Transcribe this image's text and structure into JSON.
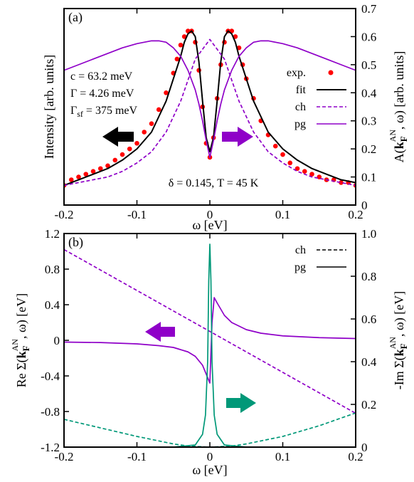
{
  "chart_data": [
    {
      "panel": "(a)",
      "type": "line",
      "xlabel": "ω [eV]",
      "ylabel_left": "Intensity [arb. units]",
      "ylabel_right": "A(k_F^AN, ω) [arb. units]",
      "xlim": [
        -0.2,
        0.2
      ],
      "ylim_right": [
        0,
        0.7
      ],
      "x_ticks": [
        "-0.2",
        "-0.1",
        "0",
        "0.1",
        "0.2"
      ],
      "y_ticks_right": [
        "0",
        "0.1",
        "0.2",
        "0.3",
        "0.4",
        "0.5",
        "0.6",
        "0.7"
      ],
      "grid": false,
      "legend_position": "right",
      "legend": [
        "exp.",
        "fit",
        "ch",
        "pg"
      ],
      "annotations": {
        "c": "c = 63.2 meV",
        "gamma": "Γ = 4.26 meV",
        "gamma_sf": "Γ",
        "gamma_sf_sub": "sf",
        "gamma_sf_value": " = 375 meV",
        "params": "δ = 0.145, T = 45 K"
      },
      "series": [
        {
          "name": "exp.",
          "style": "scatter",
          "color": "#ff0000",
          "x": [
            -0.2,
            -0.19,
            -0.18,
            -0.17,
            -0.16,
            -0.15,
            -0.14,
            -0.13,
            -0.12,
            -0.11,
            -0.1,
            -0.09,
            -0.08,
            -0.07,
            -0.06,
            -0.05,
            -0.045,
            -0.04,
            -0.035,
            -0.03,
            -0.025,
            -0.02,
            -0.015,
            -0.01,
            -0.005,
            0,
            0.005,
            0.01,
            0.015,
            0.02,
            0.025,
            0.03,
            0.035,
            0.04,
            0.045,
            0.05,
            0.06,
            0.07,
            0.08,
            0.09,
            0.1,
            0.11,
            0.12,
            0.13,
            0.14,
            0.15,
            0.16,
            0.17,
            0.18,
            0.19,
            0.2
          ],
          "y": [
            0.07,
            0.09,
            0.1,
            0.11,
            0.12,
            0.13,
            0.14,
            0.16,
            0.18,
            0.2,
            0.22,
            0.26,
            0.29,
            0.34,
            0.4,
            0.47,
            0.52,
            0.57,
            0.6,
            0.62,
            0.62,
            0.58,
            0.48,
            0.35,
            0.22,
            0.17,
            0.24,
            0.38,
            0.5,
            0.58,
            0.62,
            0.62,
            0.6,
            0.56,
            0.5,
            0.45,
            0.38,
            0.3,
            0.25,
            0.21,
            0.18,
            0.15,
            0.13,
            0.12,
            0.11,
            0.1,
            0.09,
            0.09,
            0.08,
            0.08,
            0.07
          ]
        },
        {
          "name": "fit",
          "style": "solid",
          "color": "#000000",
          "x": [
            -0.2,
            -0.18,
            -0.16,
            -0.14,
            -0.12,
            -0.1,
            -0.08,
            -0.06,
            -0.05,
            -0.04,
            -0.035,
            -0.03,
            -0.025,
            -0.02,
            -0.015,
            -0.01,
            -0.005,
            0,
            0.005,
            0.01,
            0.015,
            0.02,
            0.025,
            0.03,
            0.035,
            0.04,
            0.05,
            0.06,
            0.08,
            0.1,
            0.12,
            0.14,
            0.16,
            0.18,
            0.2
          ],
          "y": [
            0.07,
            0.09,
            0.11,
            0.13,
            0.16,
            0.2,
            0.26,
            0.37,
            0.45,
            0.53,
            0.58,
            0.61,
            0.62,
            0.6,
            0.51,
            0.37,
            0.24,
            0.19,
            0.24,
            0.37,
            0.51,
            0.6,
            0.62,
            0.61,
            0.58,
            0.53,
            0.45,
            0.37,
            0.26,
            0.2,
            0.16,
            0.13,
            0.11,
            0.09,
            0.08
          ]
        },
        {
          "name": "ch",
          "style": "dashed",
          "color": "#8f00c8",
          "x": [
            -0.2,
            -0.18,
            -0.16,
            -0.14,
            -0.12,
            -0.1,
            -0.08,
            -0.06,
            -0.04,
            -0.02,
            0,
            0.02,
            0.04,
            0.06,
            0.08,
            0.1,
            0.12,
            0.14,
            0.16,
            0.18,
            0.2
          ],
          "y": [
            0.07,
            0.08,
            0.09,
            0.1,
            0.12,
            0.15,
            0.19,
            0.26,
            0.37,
            0.52,
            0.59,
            0.52,
            0.37,
            0.26,
            0.19,
            0.15,
            0.12,
            0.1,
            0.09,
            0.08,
            0.07
          ]
        },
        {
          "name": "pg",
          "style": "solid",
          "color": "#8f00c8",
          "x": [
            -0.2,
            -0.18,
            -0.16,
            -0.14,
            -0.12,
            -0.1,
            -0.08,
            -0.07,
            -0.06,
            -0.05,
            -0.04,
            -0.03,
            -0.02,
            -0.015,
            -0.01,
            -0.005,
            0,
            0.005,
            0.01,
            0.015,
            0.02,
            0.03,
            0.04,
            0.05,
            0.06,
            0.07,
            0.08,
            0.1,
            0.12,
            0.14,
            0.16,
            0.18,
            0.2
          ],
          "y": [
            0.48,
            0.5,
            0.52,
            0.54,
            0.56,
            0.575,
            0.585,
            0.585,
            0.58,
            0.56,
            0.53,
            0.48,
            0.41,
            0.36,
            0.3,
            0.23,
            0.17,
            0.23,
            0.3,
            0.36,
            0.41,
            0.48,
            0.53,
            0.56,
            0.58,
            0.585,
            0.585,
            0.575,
            0.56,
            0.54,
            0.52,
            0.5,
            0.48
          ]
        }
      ]
    },
    {
      "panel": "(b)",
      "type": "line",
      "xlabel": "ω [eV]",
      "ylabel_left": "Re Σ(k_F^AN, ω) [eV]",
      "ylabel_right": "-Im Σ(k_F^AN, ω) [eV]",
      "xlim": [
        -0.2,
        0.2
      ],
      "ylim_left": [
        -1.2,
        1.2
      ],
      "ylim_right": [
        0,
        1.0
      ],
      "x_ticks": [
        "-0.2",
        "-0.1",
        "0",
        "0.1",
        "0.2"
      ],
      "y_ticks_left": [
        "-1.2",
        "-0.8",
        "-0.4",
        "0",
        "0.4",
        "0.8",
        "1.2"
      ],
      "y_ticks_right": [
        "0",
        "0.2",
        "0.4",
        "0.6",
        "0.8",
        "1.0"
      ],
      "grid": false,
      "legend_position": "top-right",
      "legend": [
        "ch",
        "pg"
      ],
      "series": [
        {
          "name": "ch",
          "part": "Re",
          "axis": "left",
          "style": "dashed",
          "color": "#8f00c8",
          "x": [
            -0.2,
            0.2
          ],
          "y": [
            1.02,
            -0.82
          ]
        },
        {
          "name": "ch",
          "part": "-Im",
          "axis": "right",
          "style": "dashed",
          "color": "#009878",
          "x": [
            -0.2,
            -0.15,
            -0.1,
            -0.05,
            -0.03,
            0,
            0.03,
            0.05,
            0.1,
            0.15,
            0.2
          ],
          "y": [
            0.13,
            0.09,
            0.05,
            0.015,
            0.005,
            0,
            0.005,
            0.015,
            0.05,
            0.1,
            0.16
          ]
        },
        {
          "name": "pg",
          "part": "Re",
          "axis": "left",
          "style": "solid",
          "color": "#8f00c8",
          "x": [
            -0.2,
            -0.15,
            -0.1,
            -0.07,
            -0.05,
            -0.03,
            -0.02,
            -0.01,
            -0.005,
            0,
            0.003,
            0.006,
            0.01,
            0.02,
            0.03,
            0.05,
            0.07,
            0.1,
            0.15,
            0.2
          ],
          "y": [
            -0.02,
            -0.025,
            -0.04,
            -0.06,
            -0.08,
            -0.13,
            -0.18,
            -0.28,
            -0.38,
            -0.48,
            0.2,
            0.48,
            0.42,
            0.28,
            0.2,
            0.12,
            0.08,
            0.05,
            0.03,
            0.02
          ]
        },
        {
          "name": "pg",
          "part": "-Im",
          "axis": "right",
          "style": "solid",
          "color": "#009878",
          "x": [
            -0.2,
            -0.05,
            -0.02,
            -0.01,
            -0.006,
            -0.003,
            -0.0015,
            0,
            0.0015,
            0.003,
            0.006,
            0.01,
            0.02,
            0.05,
            0.2
          ],
          "y": [
            0,
            0,
            0.01,
            0.06,
            0.15,
            0.4,
            0.78,
            0.95,
            0.78,
            0.4,
            0.15,
            0.06,
            0.01,
            0,
            0
          ]
        }
      ]
    }
  ]
}
